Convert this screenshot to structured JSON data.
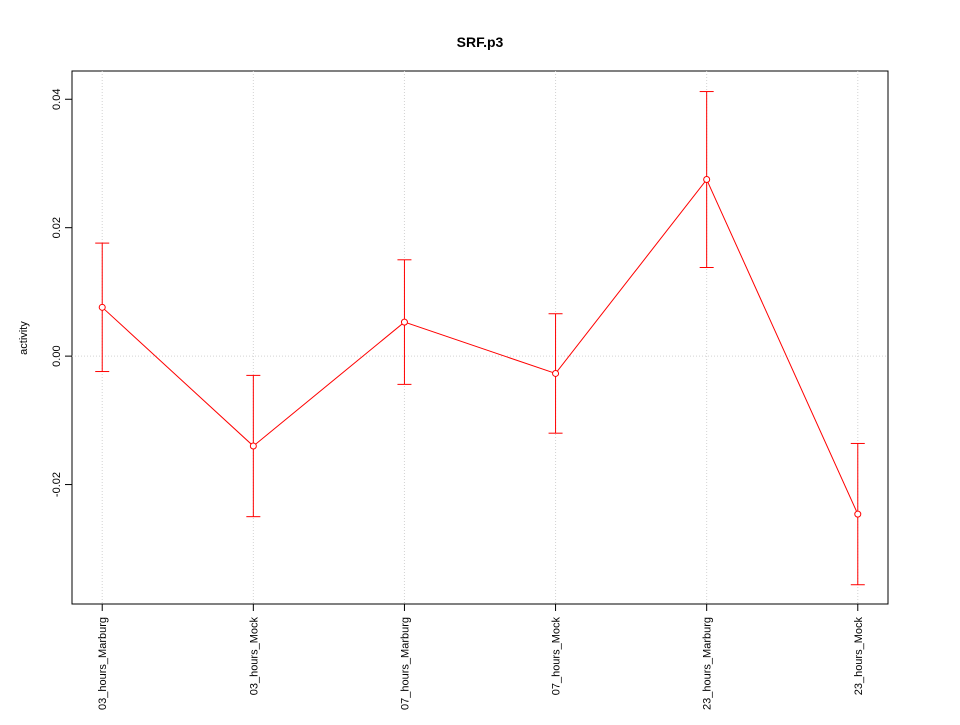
{
  "chart_data": {
    "type": "line",
    "title": "SRF.p3",
    "y_label": "activity",
    "categories": [
      "03_hours_Marburg",
      "03_hours_Mock",
      "07_hours_Marburg",
      "07_hours_Mock",
      "23_hours_Marburg",
      "23_hours_Mock"
    ],
    "series": [
      {
        "color": "#ff0000",
        "values": [
          0.0076,
          -0.014,
          0.0053,
          -0.0027,
          0.0275,
          -0.0246
        ],
        "errors": [
          0.01,
          0.011,
          0.0097,
          0.0093,
          0.0137,
          0.011
        ]
      }
    ],
    "ylim": [
      -0.0386,
      0.0444
    ],
    "yticks": [
      -0.02,
      {
        "value": 0,
        "label": "0.00"
      },
      0.02,
      0.04
    ],
    "reference_line": 0,
    "grid": true
  }
}
